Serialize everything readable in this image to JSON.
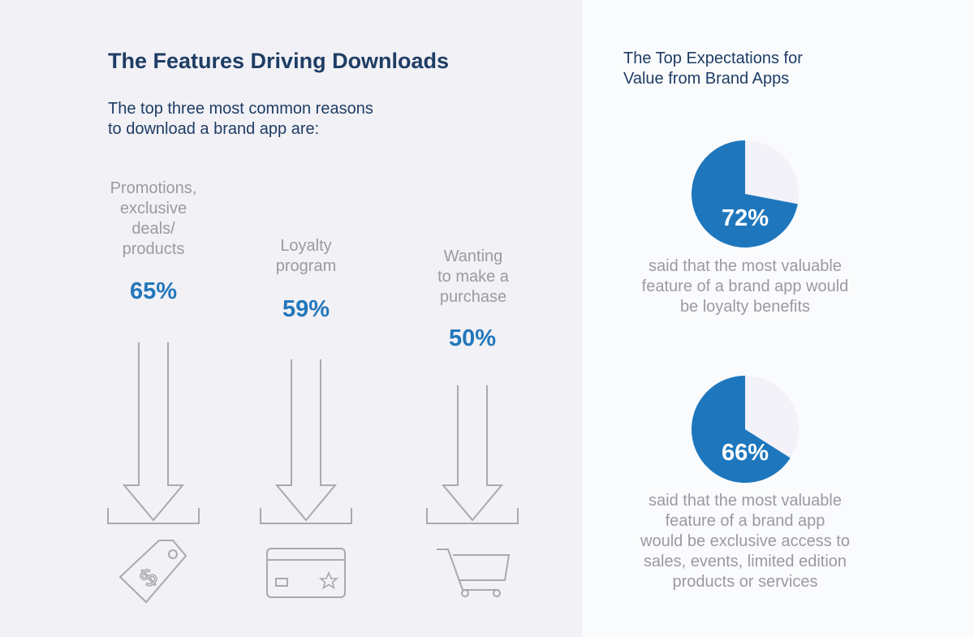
{
  "left": {
    "title": "The Features Driving Downloads",
    "intro_line1": "The top three most common reasons",
    "intro_line2": "to download a brand app are:"
  },
  "right": {
    "title_line1": "The Top Expectations for",
    "title_line2": "Value from Brand Apps"
  },
  "colors": {
    "accent": "#1e77bd",
    "heading": "#1e3d64",
    "muted": "#9a9aa0",
    "pie_remainder": "#f3f2f8"
  },
  "chart_data": [
    {
      "type": "bar",
      "title": "The Features Driving Downloads",
      "categories": [
        "Promotions, exclusive deals/ products",
        "Loyalty program",
        "Wanting to make a purchase"
      ],
      "category_lines": [
        [
          "Promotions,",
          "exclusive",
          "deals/",
          "products"
        ],
        [
          "Loyalty",
          "program"
        ],
        [
          "Wanting",
          "to make a",
          "purchase"
        ]
      ],
      "values": [
        65,
        59,
        50
      ],
      "value_labels": [
        "65%",
        "59%",
        "50%"
      ],
      "icons": [
        "price-tag-icon",
        "credit-card-icon",
        "shopping-cart-icon"
      ],
      "unit": "%"
    },
    {
      "type": "pie",
      "title": "The Top Expectations for Value from Brand Apps",
      "series": [
        {
          "value": 72,
          "label": "72%",
          "caption_lines": [
            "said that the most valuable",
            "feature of a brand app would",
            "be loyalty benefits"
          ]
        },
        {
          "value": 66,
          "label": "66%",
          "caption_lines": [
            "said that the most valuable",
            "feature of a brand app",
            "would be exclusive access to",
            "sales, events, limited edition",
            "products or services"
          ]
        }
      ]
    }
  ]
}
